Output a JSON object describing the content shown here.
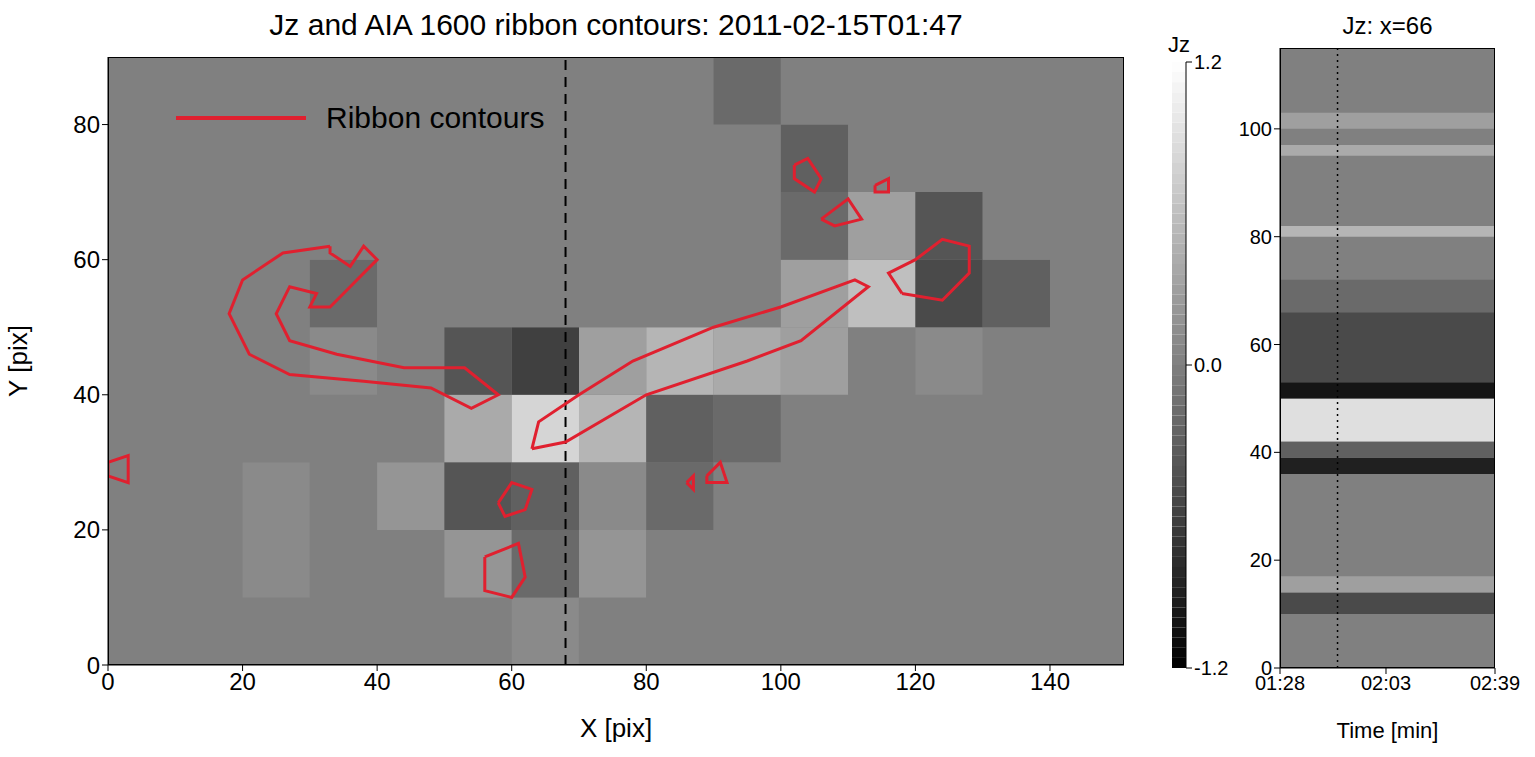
{
  "chart_data": [
    {
      "type": "heatmap",
      "title": "Jz and AIA 1600 ribbon contours:  2011-02-15T01:47",
      "x_label": "X [pix]",
      "y_label": "Y [pix]",
      "xlim": [
        0,
        151
      ],
      "xticks": [
        0,
        20,
        40,
        60,
        80,
        100,
        120,
        140
      ],
      "ylim": [
        0,
        90
      ],
      "yticks": [
        0,
        20,
        40,
        60,
        80
      ],
      "legend": "upper left",
      "cells": {
        "x_edges": [
          0,
          10,
          20,
          30,
          40,
          50,
          60,
          70,
          80,
          90,
          100,
          110,
          120,
          130,
          140,
          150
        ],
        "y_edges": [
          0,
          10,
          20,
          30,
          40,
          50,
          60,
          70,
          80,
          90
        ],
        "values": [
          [
            0,
            0,
            0,
            0,
            0,
            0,
            0.1,
            0,
            0,
            0,
            0,
            0,
            0,
            0,
            0
          ],
          [
            0,
            0,
            0.1,
            0,
            0,
            0.2,
            -0.2,
            0.2,
            0,
            0,
            0,
            0,
            0,
            0,
            0
          ],
          [
            0,
            0,
            0.1,
            0,
            0.2,
            -0.4,
            -0.3,
            0.1,
            -0.2,
            0,
            0,
            0,
            0,
            0,
            0
          ],
          [
            0,
            0,
            0,
            0,
            0,
            0.4,
            0.8,
            0.5,
            -0.3,
            -0.2,
            0,
            0,
            0,
            0,
            0
          ],
          [
            0,
            0,
            0,
            0.1,
            0,
            -0.4,
            -0.6,
            0.3,
            0.5,
            0.4,
            0.3,
            0,
            0.1,
            0,
            0
          ],
          [
            0,
            0,
            0,
            -0.2,
            0,
            0,
            0,
            0,
            0,
            0,
            0.3,
            0.6,
            -0.5,
            -0.3,
            0
          ],
          [
            0,
            0,
            0,
            0,
            0,
            0,
            0,
            0,
            0,
            0,
            -0.2,
            0.3,
            -0.4,
            0,
            0
          ],
          [
            0,
            0,
            0,
            0,
            0,
            0,
            0,
            0,
            0,
            0,
            -0.3,
            0,
            0,
            0,
            0
          ],
          [
            0,
            0,
            0,
            0,
            0,
            0,
            0,
            0,
            0,
            -0.2,
            0,
            0,
            0,
            0,
            0
          ]
        ]
      },
      "colorbar": {
        "label": "Jz",
        "range": [
          -1.2,
          1.2
        ],
        "ticks": [
          -1.2,
          {
            "value": 0,
            "label": "0.0"
          },
          1.2
        ]
      },
      "reference_lines": [
        {
          "x": 68,
          "line_style": "dashed",
          "color": "#000000"
        }
      ],
      "series": [
        {
          "name": "Ribbon contours",
          "color": "#e0202f",
          "type": "line",
          "contours": [
            [
              [
                33,
                62
              ],
              [
                26,
                61
              ],
              [
                20,
                57
              ],
              [
                18,
                52
              ],
              [
                21,
                46
              ],
              [
                27,
                43
              ],
              [
                38,
                42
              ],
              [
                48,
                41
              ],
              [
                54,
                38
              ],
              [
                58,
                40
              ],
              [
                53,
                44
              ],
              [
                44,
                44
              ],
              [
                34,
                46
              ],
              [
                27,
                48
              ],
              [
                25,
                52
              ],
              [
                27,
                56
              ],
              [
                31,
                55
              ],
              [
                30,
                53
              ],
              [
                33,
                53
              ],
              [
                36,
                56
              ],
              [
                38,
                58
              ],
              [
                40,
                60
              ],
              [
                38,
                62
              ],
              [
                36,
                59
              ],
              [
                33,
                61
              ],
              [
                33,
                62
              ]
            ],
            [
              [
                63,
                32
              ],
              [
                68,
                33
              ],
              [
                80,
                40
              ],
              [
                95,
                45
              ],
              [
                103,
                48
              ],
              [
                113,
                56
              ],
              [
                111,
                57
              ],
              [
                100,
                53
              ],
              [
                90,
                50
              ],
              [
                78,
                45
              ],
              [
                70,
                40
              ],
              [
                64,
                36
              ],
              [
                63,
                32
              ]
            ],
            [
              [
                118,
                55
              ],
              [
                124,
                54
              ],
              [
                128,
                58
              ],
              [
                128,
                62
              ],
              [
                124,
                63
              ],
              [
                120,
                60
              ],
              [
                116,
                58
              ],
              [
                118,
                55
              ]
            ],
            [
              [
                102,
                74
              ],
              [
                104,
                75
              ],
              [
                106,
                72
              ],
              [
                105,
                70
              ],
              [
                102,
                72
              ],
              [
                102,
                74
              ]
            ],
            [
              [
                106,
                66
              ],
              [
                110,
                69
              ],
              [
                112,
                66
              ],
              [
                108,
                65
              ],
              [
                106,
                66
              ]
            ],
            [
              [
                114,
                71
              ],
              [
                116,
                72
              ],
              [
                116,
                70
              ],
              [
                114,
                70
              ],
              [
                114,
                71
              ]
            ],
            [
              [
                58,
                24
              ],
              [
                60,
                27
              ],
              [
                63,
                26
              ],
              [
                62,
                23
              ],
              [
                59,
                22
              ],
              [
                58,
                24
              ]
            ],
            [
              [
                56,
                16
              ],
              [
                61,
                18
              ],
              [
                62,
                13
              ],
              [
                60,
                10
              ],
              [
                56,
                11
              ],
              [
                56,
                16
              ]
            ],
            [
              [
                0,
                30
              ],
              [
                3,
                31
              ],
              [
                3,
                27
              ],
              [
                0,
                28
              ],
              [
                0,
                30
              ]
            ],
            [
              [
                89,
                28
              ],
              [
                91,
                30
              ],
              [
                92,
                27
              ],
              [
                89,
                27
              ],
              [
                89,
                28
              ]
            ],
            [
              [
                86,
                27
              ],
              [
                87,
                28
              ],
              [
                87,
                26
              ],
              [
                86,
                27
              ]
            ]
          ]
        }
      ]
    },
    {
      "type": "heatmap",
      "title": "Jz: x=66",
      "x_label": "Time [min]",
      "xlim": [
        0,
        71
      ],
      "xticks": [
        {
          "value": 0,
          "label": "01:28"
        },
        {
          "value": 35,
          "label": "02:03"
        },
        {
          "value": 71,
          "label": "02:39"
        }
      ],
      "ylim": [
        0,
        115
      ],
      "yticks": [
        0,
        20,
        40,
        60,
        80,
        100
      ],
      "bands": [
        {
          "y": [
            10,
            14
          ],
          "value": -0.5
        },
        {
          "y": [
            14,
            17
          ],
          "value": 0.3
        },
        {
          "y": [
            36,
            39
          ],
          "value": -0.9
        },
        {
          "y": [
            39,
            42
          ],
          "value": -0.3
        },
        {
          "y": [
            42,
            50
          ],
          "value": 0.9
        },
        {
          "y": [
            50,
            53
          ],
          "value": -1.0
        },
        {
          "y": [
            53,
            66
          ],
          "value": -0.5
        },
        {
          "y": [
            66,
            72
          ],
          "value": -0.2
        },
        {
          "y": [
            80,
            82
          ],
          "value": 0.5
        },
        {
          "y": [
            95,
            97
          ],
          "value": 0.4
        },
        {
          "y": [
            100,
            103
          ],
          "value": 0.3
        }
      ],
      "reference_lines": [
        {
          "x": 19,
          "line_style": "dotted",
          "color": "#000000"
        }
      ]
    }
  ]
}
